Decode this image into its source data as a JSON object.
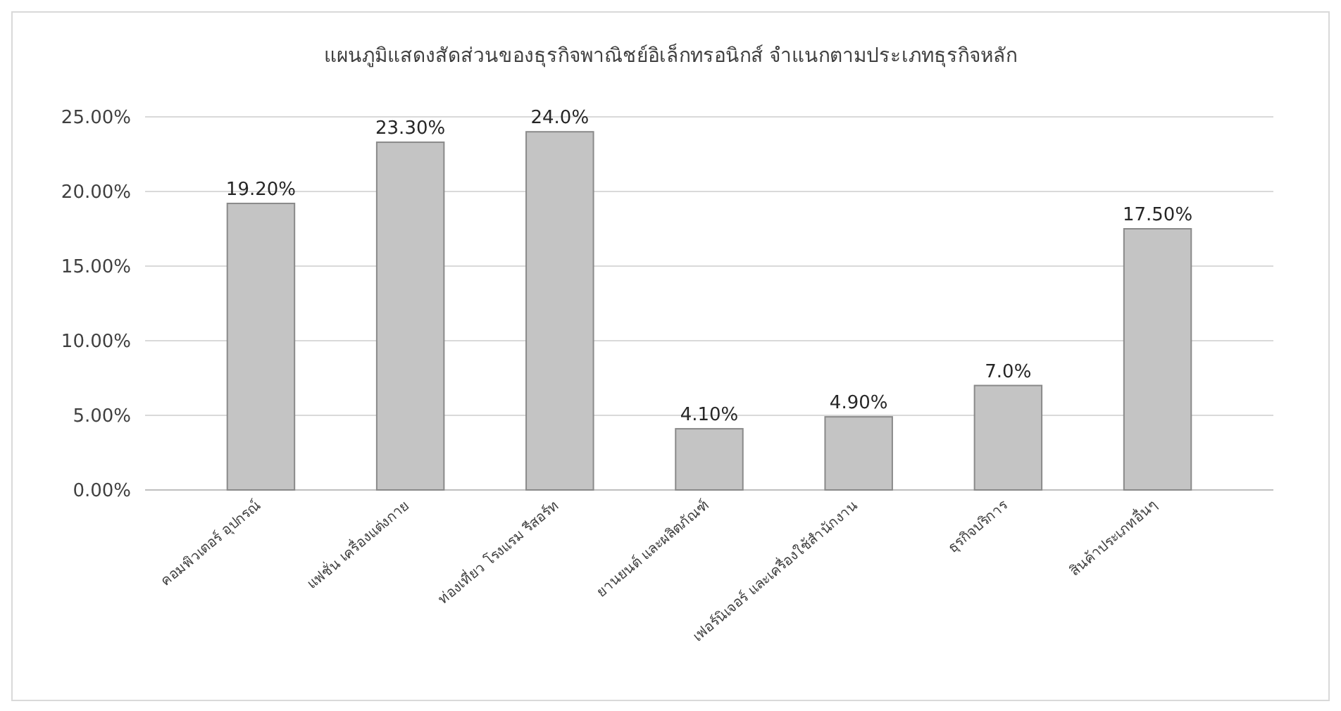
{
  "chart_data": {
    "type": "bar",
    "title": "แผนภูมิแสดงสัดส่วนของธุรกิจพาณิชย์อิเล็กทรอนิกส์ จำแนกตามประเภทธุรกิจหลัก",
    "categories": [
      "คอมพิวเตอร์ อุปกรณ์",
      "แฟชั่น เครื่องแต่งกาย",
      "ท่องเที่ยว โรงแรม รีสอร์ท",
      "ยานยนต์ และผลิตภัณฑ์",
      "เฟอร์นิเจอร์ และเครื่องใช้สำนักงาน",
      "ธุรกิจบริการ",
      "สินค้าประเภทอื่นๆ"
    ],
    "values": [
      19.2,
      23.3,
      24.0,
      4.1,
      4.9,
      7.0,
      17.5
    ],
    "value_labels": [
      "19.20%",
      "23.30%",
      "24.0%",
      "4.10%",
      "4.90%",
      "7.0%",
      "17.50%"
    ],
    "color": "#c4c4c4",
    "ylim": [
      0,
      25
    ],
    "yticks": [
      {
        "value": 0,
        "label": "0.00%"
      },
      {
        "value": 5,
        "label": "5.00%"
      },
      {
        "value": 10,
        "label": "10.00%"
      },
      {
        "value": 15,
        "label": "15.00%"
      },
      {
        "value": 20,
        "label": "20.00%"
      },
      {
        "value": 25,
        "label": "25.00%"
      }
    ],
    "grid": "y"
  }
}
